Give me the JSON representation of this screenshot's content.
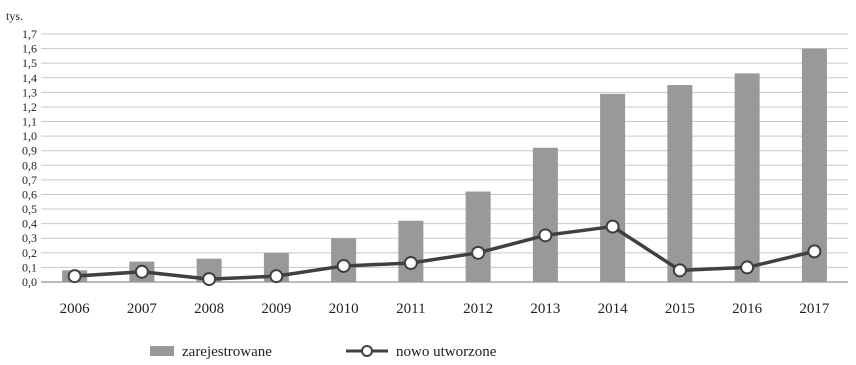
{
  "chart_data": {
    "type": "bar",
    "unit_label": "tys.",
    "categories": [
      "2006",
      "2007",
      "2008",
      "2009",
      "2010",
      "2011",
      "2012",
      "2013",
      "2014",
      "2015",
      "2016",
      "2017"
    ],
    "series": [
      {
        "name": "zarejestrowane",
        "kind": "bar",
        "color": "#999999",
        "values": [
          0.08,
          0.14,
          0.16,
          0.2,
          0.3,
          0.42,
          0.62,
          0.92,
          1.29,
          1.35,
          1.43,
          1.6
        ]
      },
      {
        "name": "nowo utworzone",
        "kind": "line",
        "color": "#404040",
        "values": [
          0.04,
          0.07,
          0.02,
          0.04,
          0.11,
          0.13,
          0.2,
          0.32,
          0.38,
          0.08,
          0.1,
          0.21
        ]
      }
    ],
    "ylim": [
      0,
      1.7
    ],
    "yticks": [
      "0,0",
      "0,1",
      "0,2",
      "0,3",
      "0,4",
      "0,5",
      "0,6",
      "0,7",
      "0,8",
      "0,9",
      "1,0",
      "1,1",
      "1,2",
      "1,3",
      "1,4",
      "1,5",
      "1,6",
      "1,7"
    ],
    "grid": true,
    "legend_position": "bottom"
  }
}
